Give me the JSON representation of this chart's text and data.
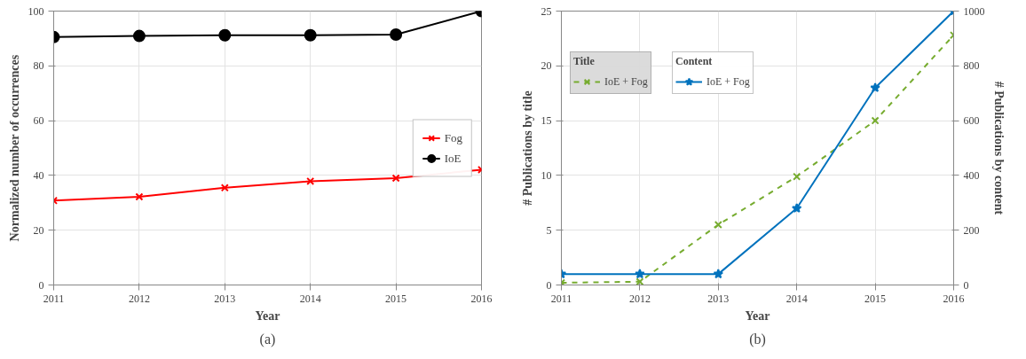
{
  "chart_data": [
    {
      "type": "line",
      "xlabel": "Year",
      "ylabel": "Normalized number of occurrences",
      "x": [
        2011,
        2012,
        2013,
        2014,
        2015,
        2016
      ],
      "series": [
        {
          "name": "Fog",
          "color": "#ff0000",
          "values": [
            30.8,
            32.2,
            35.5,
            37.9,
            39,
            42.1
          ],
          "marker": "cross",
          "line_style": "solid"
        },
        {
          "name": "IoE",
          "color": "#000000",
          "values": [
            90.5,
            90.9,
            91.2,
            91.2,
            91.4,
            100
          ],
          "marker": "circle",
          "line_style": "solid"
        }
      ],
      "xlim": [
        2011,
        2016
      ],
      "xticks": [
        2011,
        2012,
        2013,
        2014,
        2015,
        2016
      ],
      "ylim": [
        0,
        100
      ],
      "yticks": [
        0,
        20,
        40,
        60,
        80,
        100
      ],
      "grid": true,
      "legend": "right",
      "annotations": [
        "(a)"
      ]
    },
    {
      "type": "line",
      "xlabel": "Year",
      "ylabel": "# Publications by title",
      "y2label": "# Publications by content",
      "x": [
        2011,
        2012,
        2013,
        2014,
        2015,
        2016
      ],
      "series": [
        {
          "name": "IoE + Fog",
          "color": "#77ac30",
          "values": [
            0.2,
            0.3,
            5.5,
            9.9,
            15,
            22.8
          ],
          "marker": "cross",
          "line_style": "dashed"
        },
        {
          "name": "IoE + Fog",
          "color": "#0072bd",
          "values": [
            40,
            40,
            40,
            280,
            720,
            1000
          ],
          "marker": "star",
          "line_style": "solid",
          "axis": "y2"
        }
      ],
      "xlim": [
        2011,
        2016
      ],
      "xticks": [
        2011,
        2012,
        2013,
        2014,
        2015,
        2016
      ],
      "ylim": [
        0,
        25
      ],
      "yticks": [
        0,
        5,
        10,
        15,
        20,
        25
      ],
      "y2lim": [
        0,
        1000
      ],
      "y2ticks": [
        0,
        200,
        400,
        600,
        800,
        1000
      ],
      "grid": true,
      "legend": "top left",
      "annotations": [
        "Title",
        "Content",
        "(b)"
      ]
    }
  ]
}
